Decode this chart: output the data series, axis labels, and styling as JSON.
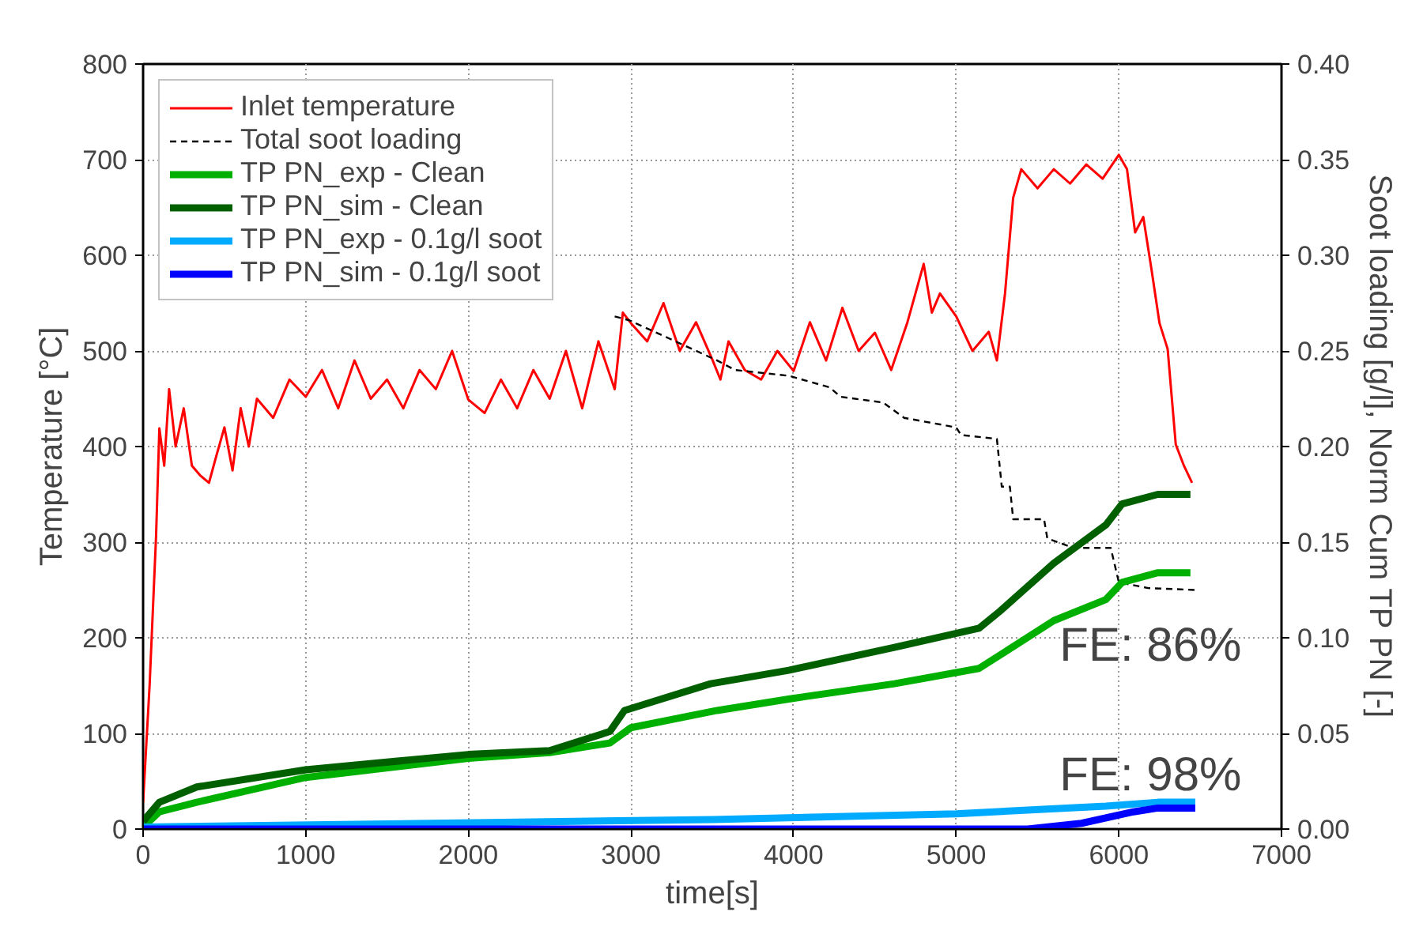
{
  "chart_data": {
    "type": "line",
    "xlabel": "time[s]",
    "ylabel": "Temperature [°C]",
    "y2label": "Soot loading [g/l], Norm Cum TP PN [-]",
    "xlim": [
      0,
      7000
    ],
    "xticks": [
      0,
      1000,
      2000,
      3000,
      4000,
      5000,
      6000,
      7000
    ],
    "ylim": [
      0,
      800
    ],
    "yticks": [
      0,
      100,
      200,
      300,
      400,
      500,
      600,
      700,
      800
    ],
    "y2lim": [
      0,
      0.4
    ],
    "y2ticks": [
      {
        "value": 0,
        "label": "0.00"
      },
      {
        "value": 0.05,
        "label": "0.05"
      },
      {
        "value": 0.1,
        "label": "0.10"
      },
      {
        "value": 0.15,
        "label": "0.15"
      },
      {
        "value": 0.2,
        "label": "0.20"
      },
      {
        "value": 0.25,
        "label": "0.25"
      },
      {
        "value": 0.3,
        "label": "0.30"
      },
      {
        "value": 0.35,
        "label": "0.35"
      },
      {
        "value": 0.4,
        "label": "0.40"
      }
    ],
    "grid": true,
    "legend": "top left",
    "annotations": [
      "FE: 86%",
      "FE: 98%"
    ],
    "series": [
      {
        "name": "Inlet temperature",
        "color": "#ff0000",
        "line_style": "solid",
        "x": [
          0,
          40,
          80,
          100,
          130,
          160,
          200,
          250,
          300,
          350,
          405,
          450,
          500,
          550,
          600,
          650,
          700,
          800,
          900,
          1000,
          1100,
          1200,
          1300,
          1400,
          1500,
          1600,
          1700,
          1800,
          1900,
          2000,
          2100,
          2200,
          2300,
          2400,
          2500,
          2600,
          2700,
          2800,
          2900,
          2950,
          3000,
          3100,
          3200,
          3300,
          3400,
          3500,
          3550,
          3600,
          3700,
          3800,
          3900,
          4000,
          4100,
          4200,
          4300,
          4400,
          4500,
          4600,
          4700,
          4800,
          4850,
          4900,
          5000,
          5100,
          5200,
          5250,
          5300,
          5350,
          5400,
          5500,
          5600,
          5700,
          5800,
          5900,
          6000,
          6050,
          6100,
          6150,
          6200,
          6250,
          6300,
          6350,
          6400,
          6450
        ],
        "values": [
          28,
          150,
          307,
          419,
          380,
          460,
          400,
          440,
          380,
          370,
          362,
          390,
          420,
          375,
          440,
          400,
          450,
          430,
          470,
          452,
          480,
          440,
          490,
          450,
          470,
          440,
          480,
          460,
          500,
          449,
          435,
          470,
          440,
          480,
          450,
          500,
          440,
          510,
          460,
          540,
          529,
          510,
          550,
          500,
          530,
          491,
          470,
          510,
          480,
          470,
          500,
          479,
          530,
          490,
          545,
          500,
          519,
          480,
          530,
          591,
          540,
          560,
          536,
          500,
          520,
          490,
          560,
          660,
          690,
          670,
          690,
          675,
          695,
          680,
          705,
          690,
          624,
          640,
          586,
          529,
          502,
          402,
          380,
          362
        ]
      },
      {
        "name": "Total soot loading",
        "color": "#000000",
        "line_style": "dashed",
        "axis": "y2",
        "x": [
          2900,
          2990,
          3530,
          3640,
          3970,
          4220,
          4290,
          4550,
          4680,
          5000,
          5030,
          5250,
          5280,
          5330,
          5350,
          5540,
          5560,
          5720,
          5950,
          6000,
          6180,
          6470
        ],
        "values": [
          0.268,
          0.266,
          0.245,
          0.24,
          0.237,
          0.231,
          0.226,
          0.223,
          0.215,
          0.21,
          0.206,
          0.204,
          0.179,
          0.179,
          0.162,
          0.162,
          0.152,
          0.147,
          0.147,
          0.129,
          0.126,
          0.125
        ]
      },
      {
        "name": "TP PN_exp - Clean",
        "color": "#00b000",
        "line_style": "solid",
        "axis": "y2",
        "x": [
          0,
          100,
          330,
          1000,
          2000,
          2500,
          2870,
          3000,
          3530,
          3970,
          4620,
          5140,
          5270,
          5600,
          5920,
          6020,
          6240,
          6440
        ],
        "values": [
          0.001,
          0.009,
          0.014,
          0.027,
          0.037,
          0.04,
          0.045,
          0.053,
          0.062,
          0.068,
          0.076,
          0.084,
          0.091,
          0.109,
          0.12,
          0.129,
          0.134,
          0.134
        ]
      },
      {
        "name": "TP PN_sim - Clean",
        "color": "#006000",
        "line_style": "solid",
        "axis": "y2",
        "x": [
          0,
          100,
          330,
          1000,
          2000,
          2500,
          2870,
          2960,
          3490,
          3970,
          4620,
          5140,
          5270,
          5600,
          5920,
          6020,
          6240,
          6440
        ],
        "values": [
          0.004,
          0.014,
          0.022,
          0.031,
          0.039,
          0.041,
          0.051,
          0.062,
          0.076,
          0.083,
          0.095,
          0.105,
          0.114,
          0.139,
          0.159,
          0.17,
          0.175,
          0.175
        ]
      },
      {
        "name": "TP PN_exp - 0.1g/l soot",
        "color": "#00aaff",
        "line_style": "solid",
        "axis": "y2",
        "x": [
          0,
          3500,
          5000,
          5920,
          6240,
          6470
        ],
        "values": [
          0.001,
          0.005,
          0.008,
          0.012,
          0.014,
          0.014
        ]
      },
      {
        "name": "TP PN_sim - 0.1g/l soot",
        "color": "#0000ff",
        "line_style": "solid",
        "axis": "y2",
        "x": [
          0,
          5440,
          5770,
          6090,
          6240,
          6470
        ],
        "values": [
          0.0,
          0.0,
          0.003,
          0.009,
          0.011,
          0.011
        ]
      }
    ]
  }
}
